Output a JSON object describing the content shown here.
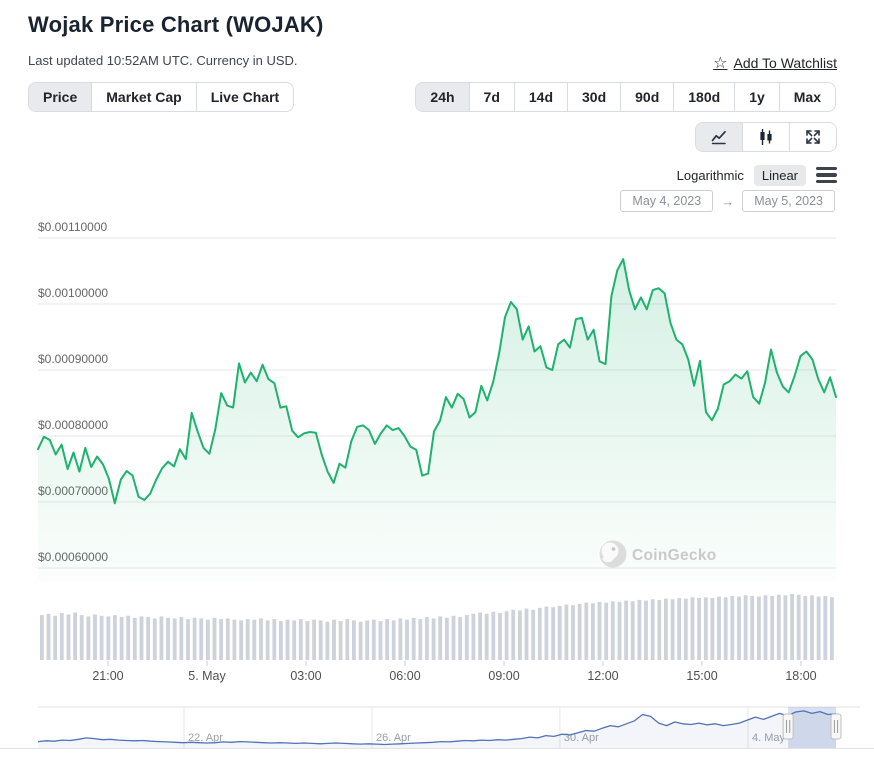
{
  "header": {
    "title": "Wojak Price Chart (WOJAK)",
    "subtitle": "Last updated 10:52AM UTC. Currency in USD.",
    "watchlist_label": "Add To Watchlist",
    "star_glyph": "☆"
  },
  "view_tabs": {
    "items": [
      "Price",
      "Market Cap",
      "Live Chart"
    ],
    "selected": "Price"
  },
  "range_buttons": {
    "items": [
      "24h",
      "7d",
      "14d",
      "30d",
      "90d",
      "180d",
      "1y",
      "Max"
    ],
    "selected": "24h"
  },
  "chart_type_buttons": {
    "items": [
      "line-chart",
      "candlestick",
      "fullscreen"
    ],
    "selected": "line-chart"
  },
  "scale": {
    "log_label": "Logarithmic",
    "linear_label": "Linear",
    "selected": "Linear"
  },
  "date_range": {
    "from": "May 4, 2023",
    "to": "May 5, 2023",
    "arrow": "→"
  },
  "watermark": {
    "label": "CoinGecko"
  },
  "chart_data": {
    "type": "area",
    "title": "Wojak Price Chart (WOJAK)",
    "currency": "USD",
    "legend": "off",
    "grid": "horizontal",
    "colors": {
      "price_line": "#1fb26e",
      "price_fill_top": "rgba(31,178,110,0.20)",
      "price_fill_bottom": "rgba(31,178,110,0.02)",
      "volume_bar": "#ced2db",
      "gridline": "#e7e7e7",
      "axis_label": "#666666",
      "nav_line": "#5172b5",
      "nav_label": "#9aa0a8",
      "nav_selection": "rgba(81,114,181,0.22)"
    },
    "y_axis": {
      "min": 0.0006,
      "max": 0.0011,
      "ticks": [
        {
          "label": "$0.00110000",
          "value": 0.0011
        },
        {
          "label": "$0.00100000",
          "value": 0.001
        },
        {
          "label": "$0.00090000",
          "value": 0.0009
        },
        {
          "label": "$0.00080000",
          "value": 0.0008
        },
        {
          "label": "$0.00070000",
          "value": 0.0007
        },
        {
          "label": "$0.00060000",
          "value": 0.0006
        }
      ]
    },
    "x_axis": {
      "window": "24h (May 4, 2023 → May 5, 2023, UTC)",
      "ticks": [
        {
          "label": "21:00",
          "pos": 0.0877
        },
        {
          "label": "5. May",
          "pos": 0.2118
        },
        {
          "label": "03:00",
          "pos": 0.3358
        },
        {
          "label": "06:00",
          "pos": 0.4599
        },
        {
          "label": "09:00",
          "pos": 0.584
        },
        {
          "label": "12:00",
          "pos": 0.708
        },
        {
          "label": "15:00",
          "pos": 0.8321
        },
        {
          "label": "18:00",
          "pos": 0.9561
        }
      ]
    },
    "price_series": {
      "name": "WOJAK price (USD)",
      "spacing": "evenly spaced over 24h window",
      "values": [
        0.00078,
        0.000799,
        0.000794,
        0.000772,
        0.000787,
        0.00075,
        0.000775,
        0.000746,
        0.000782,
        0.000753,
        0.000769,
        0.000757,
        0.000735,
        0.000698,
        0.000734,
        0.000747,
        0.00074,
        0.000708,
        0.000703,
        0.000713,
        0.000734,
        0.000751,
        0.000761,
        0.000754,
        0.00078,
        0.000765,
        0.000835,
        0.000807,
        0.000782,
        0.000773,
        0.00081,
        0.000865,
        0.000846,
        0.000843,
        0.00091,
        0.000881,
        0.000896,
        0.000883,
        0.000908,
        0.000886,
        0.00088,
        0.000843,
        0.000845,
        0.000808,
        0.000798,
        0.000804,
        0.000806,
        0.000805,
        0.000772,
        0.000746,
        0.000729,
        0.000758,
        0.000752,
        0.000792,
        0.000814,
        0.000816,
        0.000809,
        0.000788,
        0.000804,
        0.000816,
        0.000809,
        0.000812,
        0.0008,
        0.000784,
        0.000779,
        0.00074,
        0.000743,
        0.000807,
        0.000823,
        0.000859,
        0.000843,
        0.000864,
        0.000856,
        0.000828,
        0.000836,
        0.000876,
        0.000854,
        0.000882,
        0.000925,
        0.00098,
        0.001003,
        0.000992,
        0.000946,
        0.000966,
        0.000928,
        0.000936,
        0.000904,
        0.0009,
        0.000939,
        0.000946,
        0.000934,
        0.000977,
        0.000979,
        0.000946,
        0.000961,
        0.000913,
        0.000909,
        0.001012,
        0.001051,
        0.001068,
        0.001021,
        0.000992,
        0.00101,
        0.000992,
        0.001021,
        0.001024,
        0.001016,
        0.000971,
        0.000946,
        0.000939,
        0.000916,
        0.000876,
        0.000914,
        0.000836,
        0.000824,
        0.000841,
        0.000878,
        0.000883,
        0.000893,
        0.000887,
        0.000898,
        0.000859,
        0.000849,
        0.000881,
        0.000931,
        0.000896,
        0.000875,
        0.000866,
        0.000891,
        0.000921,
        0.000928,
        0.000916,
        0.000886,
        0.000866,
        0.000889,
        0.000859
      ]
    },
    "volume_series": {
      "name": "24h volume (relative height)",
      "values_relative": [
        0.68,
        0.7,
        0.67,
        0.71,
        0.69,
        0.72,
        0.68,
        0.66,
        0.69,
        0.67,
        0.66,
        0.68,
        0.65,
        0.67,
        0.64,
        0.66,
        0.65,
        0.63,
        0.66,
        0.64,
        0.63,
        0.65,
        0.62,
        0.64,
        0.63,
        0.61,
        0.64,
        0.62,
        0.63,
        0.61,
        0.6,
        0.62,
        0.61,
        0.63,
        0.6,
        0.62,
        0.59,
        0.61,
        0.6,
        0.62,
        0.59,
        0.61,
        0.6,
        0.58,
        0.61,
        0.59,
        0.62,
        0.6,
        0.58,
        0.6,
        0.61,
        0.59,
        0.62,
        0.6,
        0.63,
        0.61,
        0.64,
        0.62,
        0.65,
        0.63,
        0.66,
        0.64,
        0.67,
        0.65,
        0.68,
        0.7,
        0.72,
        0.7,
        0.73,
        0.71,
        0.74,
        0.76,
        0.75,
        0.78,
        0.76,
        0.79,
        0.81,
        0.8,
        0.82,
        0.84,
        0.83,
        0.85,
        0.87,
        0.86,
        0.88,
        0.87,
        0.89,
        0.88,
        0.9,
        0.89,
        0.91,
        0.9,
        0.92,
        0.91,
        0.93,
        0.92,
        0.94,
        0.93,
        0.95,
        0.94,
        0.95,
        0.94,
        0.96,
        0.95,
        0.97,
        0.96,
        0.98,
        0.97,
        0.96,
        0.98,
        0.97,
        0.99,
        0.98,
        1.0,
        0.99,
        0.97,
        0.98,
        0.96,
        0.97,
        0.95
      ]
    },
    "navigator": {
      "name": "full-history navigator (relative price)",
      "ticks": [
        {
          "label": "22. Apr",
          "pos": 0.183
        },
        {
          "label": "26. Apr",
          "pos": 0.4185
        },
        {
          "label": "30. Apr",
          "pos": 0.654
        },
        {
          "label": "4. May",
          "pos": 0.8897
        }
      ],
      "values_relative": [
        0.12,
        0.14,
        0.13,
        0.16,
        0.15,
        0.18,
        0.22,
        0.2,
        0.17,
        0.18,
        0.16,
        0.15,
        0.14,
        0.15,
        0.13,
        0.12,
        0.11,
        0.1,
        0.09,
        0.1,
        0.09,
        0.08,
        0.09,
        0.11,
        0.1,
        0.12,
        0.11,
        0.1,
        0.09,
        0.08,
        0.09,
        0.08,
        0.07,
        0.08,
        0.07,
        0.06,
        0.07,
        0.08,
        0.07,
        0.06,
        0.05,
        0.06,
        0.05,
        0.04,
        0.05,
        0.06,
        0.07,
        0.08,
        0.09,
        0.1,
        0.12,
        0.11,
        0.13,
        0.15,
        0.14,
        0.16,
        0.15,
        0.17,
        0.16,
        0.18,
        0.2,
        0.24,
        0.22,
        0.28,
        0.26,
        0.32,
        0.3,
        0.36,
        0.42,
        0.4,
        0.48,
        0.55,
        0.52,
        0.6,
        0.68,
        0.85,
        0.8,
        0.62,
        0.55,
        0.65,
        0.6,
        0.58,
        0.62,
        0.57,
        0.6,
        0.55,
        0.58,
        0.62,
        0.7,
        0.78,
        0.72,
        0.8,
        0.88,
        0.82,
        0.92,
        0.95,
        0.88,
        0.93,
        0.85,
        0.87
      ],
      "selection": {
        "from_pos": 0.94,
        "to_pos": 1.0
      }
    }
  }
}
